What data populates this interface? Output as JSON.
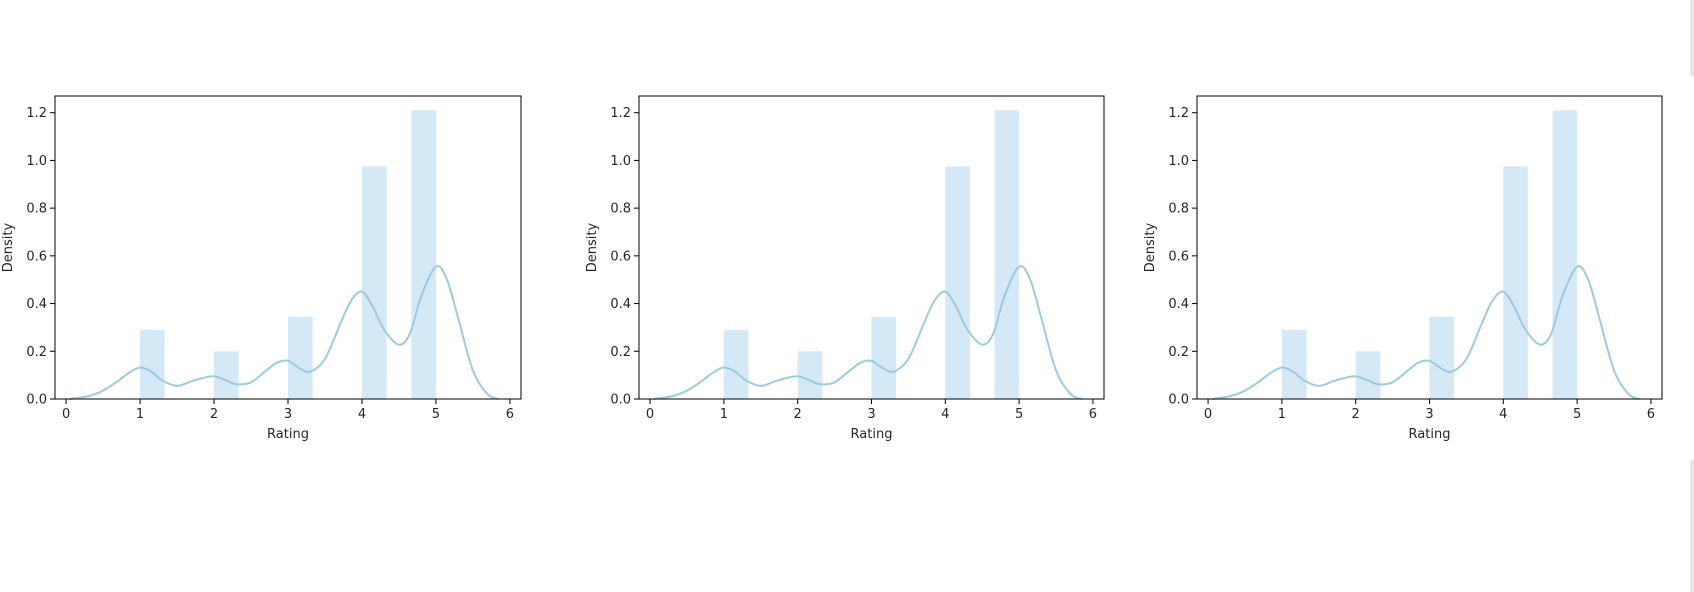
{
  "chart_data": [
    {
      "type": "bar",
      "title": "",
      "xlabel": "Rating",
      "ylabel": "Density",
      "xlim": [
        -0.15,
        6.15
      ],
      "ylim": [
        0,
        1.27
      ],
      "xticks": [
        "0",
        "1",
        "2",
        "3",
        "4",
        "5",
        "6"
      ],
      "yticks": [
        "0.0",
        "0.2",
        "0.4",
        "0.6",
        "0.8",
        "1.0",
        "1.2"
      ],
      "grid": false,
      "histogram": {
        "bins": [
          {
            "x0": 1.0,
            "x1": 1.333,
            "density": 0.29
          },
          {
            "x0": 2.0,
            "x1": 2.333,
            "density": 0.2
          },
          {
            "x0": 3.0,
            "x1": 3.333,
            "density": 0.345
          },
          {
            "x0": 4.0,
            "x1": 4.333,
            "density": 0.975
          },
          {
            "x0": 4.667,
            "x1": 5.0,
            "density": 1.21
          }
        ],
        "color": "#d4e8f5"
      },
      "kde": {
        "color": "#9ecae1",
        "x": [
          0.05,
          0.3,
          0.5,
          0.7,
          0.85,
          1.0,
          1.15,
          1.3,
          1.5,
          1.7,
          1.85,
          2.0,
          2.15,
          2.3,
          2.5,
          2.7,
          2.85,
          3.0,
          3.15,
          3.3,
          3.5,
          3.7,
          3.85,
          4.0,
          4.15,
          4.3,
          4.5,
          4.65,
          4.8,
          5.0,
          5.15,
          5.3,
          5.5,
          5.7,
          5.85
        ],
        "y": [
          0.0,
          0.012,
          0.035,
          0.075,
          0.11,
          0.132,
          0.115,
          0.078,
          0.055,
          0.075,
          0.088,
          0.095,
          0.08,
          0.062,
          0.07,
          0.118,
          0.152,
          0.16,
          0.13,
          0.115,
          0.168,
          0.31,
          0.41,
          0.45,
          0.385,
          0.29,
          0.228,
          0.275,
          0.43,
          0.555,
          0.5,
          0.34,
          0.12,
          0.02,
          0.0
        ]
      }
    },
    {
      "type": "bar",
      "title": "",
      "xlabel": "Rating",
      "ylabel": "Density",
      "xlim": [
        -0.15,
        6.15
      ],
      "ylim": [
        0,
        1.27
      ],
      "xticks": [
        "0",
        "1",
        "2",
        "3",
        "4",
        "5",
        "6"
      ],
      "yticks": [
        "0.0",
        "0.2",
        "0.4",
        "0.6",
        "0.8",
        "1.0",
        "1.2"
      ],
      "grid": false,
      "histogram": {
        "bins": [
          {
            "x0": 1.0,
            "x1": 1.333,
            "density": 0.29
          },
          {
            "x0": 2.0,
            "x1": 2.333,
            "density": 0.2
          },
          {
            "x0": 3.0,
            "x1": 3.333,
            "density": 0.345
          },
          {
            "x0": 4.0,
            "x1": 4.333,
            "density": 0.975
          },
          {
            "x0": 4.667,
            "x1": 5.0,
            "density": 1.21
          }
        ],
        "color": "#d4e8f5"
      },
      "kde": {
        "color": "#9ecae1",
        "x": [
          0.05,
          0.3,
          0.5,
          0.7,
          0.85,
          1.0,
          1.15,
          1.3,
          1.5,
          1.7,
          1.85,
          2.0,
          2.15,
          2.3,
          2.5,
          2.7,
          2.85,
          3.0,
          3.15,
          3.3,
          3.5,
          3.7,
          3.85,
          4.0,
          4.15,
          4.3,
          4.5,
          4.65,
          4.8,
          5.0,
          5.15,
          5.3,
          5.5,
          5.7,
          5.85
        ],
        "y": [
          0.0,
          0.012,
          0.035,
          0.075,
          0.11,
          0.132,
          0.115,
          0.078,
          0.055,
          0.075,
          0.088,
          0.095,
          0.08,
          0.062,
          0.07,
          0.118,
          0.152,
          0.16,
          0.13,
          0.115,
          0.168,
          0.31,
          0.41,
          0.45,
          0.385,
          0.29,
          0.228,
          0.275,
          0.43,
          0.555,
          0.5,
          0.34,
          0.12,
          0.02,
          0.0
        ]
      }
    },
    {
      "type": "bar",
      "title": "",
      "xlabel": "Rating",
      "ylabel": "Density",
      "xlim": [
        -0.15,
        6.15
      ],
      "ylim": [
        0,
        1.27
      ],
      "xticks": [
        "0",
        "1",
        "2",
        "3",
        "4",
        "5",
        "6"
      ],
      "yticks": [
        "0.0",
        "0.2",
        "0.4",
        "0.6",
        "0.8",
        "1.0",
        "1.2"
      ],
      "grid": false,
      "histogram": {
        "bins": [
          {
            "x0": 1.0,
            "x1": 1.333,
            "density": 0.29
          },
          {
            "x0": 2.0,
            "x1": 2.333,
            "density": 0.2
          },
          {
            "x0": 3.0,
            "x1": 3.333,
            "density": 0.345
          },
          {
            "x0": 4.0,
            "x1": 4.333,
            "density": 0.975
          },
          {
            "x0": 4.667,
            "x1": 5.0,
            "density": 1.21
          }
        ],
        "color": "#d4e8f5"
      },
      "kde": {
        "color": "#9ecae1",
        "x": [
          0.05,
          0.3,
          0.5,
          0.7,
          0.85,
          1.0,
          1.15,
          1.3,
          1.5,
          1.7,
          1.85,
          2.0,
          2.15,
          2.3,
          2.5,
          2.7,
          2.85,
          3.0,
          3.15,
          3.3,
          3.5,
          3.7,
          3.85,
          4.0,
          4.15,
          4.3,
          4.5,
          4.65,
          4.8,
          5.0,
          5.15,
          5.3,
          5.5,
          5.7,
          5.85
        ],
        "y": [
          0.0,
          0.012,
          0.035,
          0.075,
          0.11,
          0.132,
          0.115,
          0.078,
          0.055,
          0.075,
          0.088,
          0.095,
          0.08,
          0.062,
          0.07,
          0.118,
          0.152,
          0.16,
          0.13,
          0.115,
          0.168,
          0.31,
          0.41,
          0.45,
          0.385,
          0.29,
          0.228,
          0.275,
          0.43,
          0.555,
          0.5,
          0.34,
          0.12,
          0.02,
          0.0
        ]
      }
    }
  ]
}
